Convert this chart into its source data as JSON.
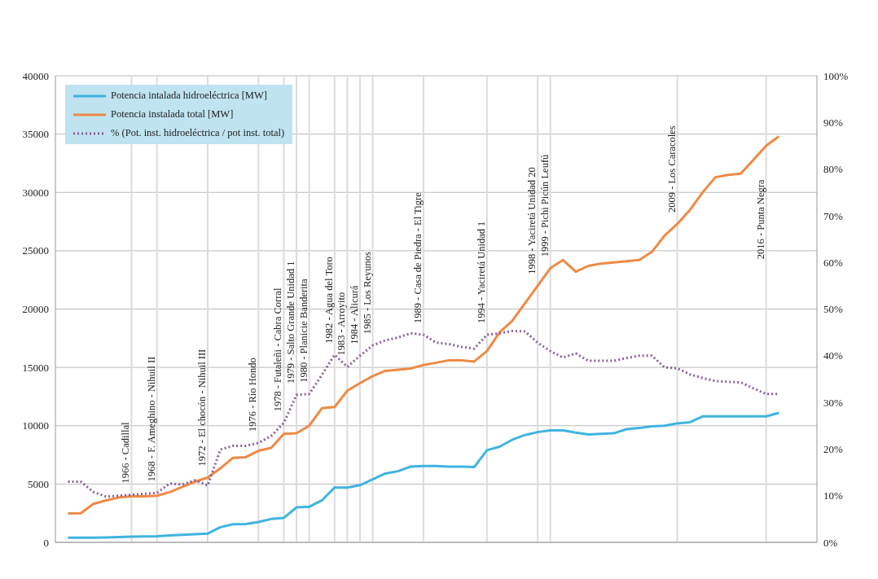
{
  "chart_data": {
    "type": "line",
    "x": [
      1961,
      1962,
      1963,
      1964,
      1965,
      1966,
      1967,
      1968,
      1969,
      1970,
      1971,
      1972,
      1973,
      1974,
      1975,
      1976,
      1977,
      1978,
      1979,
      1980,
      1981,
      1982,
      1983,
      1984,
      1985,
      1986,
      1987,
      1988,
      1989,
      1990,
      1991,
      1992,
      1993,
      1994,
      1995,
      1996,
      1997,
      1998,
      1999,
      2000,
      2001,
      2002,
      2003,
      2004,
      2005,
      2006,
      2007,
      2008,
      2009,
      2010,
      2011,
      2012,
      2013,
      2014,
      2015,
      2016,
      2017
    ],
    "series": [
      {
        "name": "Potencia intalada hidroeléctrica [MW]",
        "color": "#3fb4e0",
        "line_style": "solid",
        "values": [
          400,
          400,
          400,
          420,
          450,
          480,
          500,
          520,
          600,
          650,
          700,
          750,
          1300,
          1550,
          1570,
          1750,
          2000,
          2100,
          3000,
          3050,
          3600,
          4700,
          4700,
          4900,
          5400,
          5900,
          6100,
          6500,
          6550,
          6550,
          6500,
          6500,
          6450,
          7900,
          8200,
          8800,
          9200,
          9450,
          9600,
          9600,
          9400,
          9250,
          9300,
          9350,
          9700,
          9800,
          9950,
          10000,
          10200,
          10300,
          10800,
          10800,
          10800,
          10800,
          10800,
          10800,
          11100
        ]
      },
      {
        "name": "Potencia instalada total [MW]",
        "color": "#ee8a45",
        "line_style": "solid",
        "values": [
          2470,
          2500,
          3300,
          3600,
          3850,
          3950,
          3950,
          4000,
          4300,
          4750,
          5200,
          5550,
          6350,
          7250,
          7300,
          7850,
          8100,
          9300,
          9350,
          10000,
          11500,
          11600,
          13000,
          13650,
          14250,
          14700,
          14800,
          14900,
          15200,
          15400,
          15600,
          15600,
          15500,
          16400,
          18000,
          19000,
          20500,
          22000,
          23500,
          24200,
          23200,
          23700,
          23900,
          24000,
          24100,
          24200,
          24900,
          26300,
          27300,
          28500,
          30000,
          31300,
          31500,
          31600,
          32800,
          34000,
          34800
        ]
      },
      {
        "name": "% (Pot. inst. hidroeléctrica / pot inst. total)",
        "color": "#8a5f96",
        "line_style": "dotted",
        "axis": "y2",
        "values": [
          13,
          13,
          10.8,
          9.8,
          10,
          10.2,
          10.4,
          10.6,
          12.6,
          12.4,
          13.3,
          12.2,
          19.9,
          20.7,
          20.7,
          21.3,
          22.8,
          25.6,
          31.6,
          31.8,
          35.9,
          40.2,
          37.6,
          40,
          42.2,
          43.3,
          43.9,
          44.8,
          44.5,
          42.8,
          42.5,
          41.9,
          41.5,
          44.5,
          44.8,
          45.3,
          45.2,
          42.8,
          41,
          39.6,
          40.5,
          38.9,
          38.9,
          38.9,
          39.5,
          40,
          40,
          37.5,
          37.3,
          36,
          35.2,
          34.6,
          34.4,
          34.3,
          33,
          31.8,
          31.8
        ]
      }
    ],
    "xlim": [
      1960,
      2020
    ],
    "ylim": [
      0,
      40000
    ],
    "yticks": [
      0,
      5000,
      10000,
      15000,
      20000,
      25000,
      30000,
      35000,
      40000
    ],
    "y2lim": [
      0,
      100
    ],
    "y2ticks": [
      {
        "value": 0,
        "label": "0%"
      },
      {
        "value": 10,
        "label": "10%"
      },
      {
        "value": 20,
        "label": "20%"
      },
      {
        "value": 30,
        "label": "30%"
      },
      {
        "value": 40,
        "label": "40%"
      },
      {
        "value": 50,
        "label": "50%"
      },
      {
        "value": 60,
        "label": "60%"
      },
      {
        "value": 70,
        "label": "70%"
      },
      {
        "value": 80,
        "label": "80%"
      },
      {
        "value": 90,
        "label": "90%"
      },
      {
        "value": 100,
        "label": "100%"
      }
    ],
    "tick_labels": "y",
    "grid": "y",
    "legend": "top left",
    "marker": "none",
    "ref_lines": [
      {
        "axis": "x",
        "value": 1966,
        "label": "1966 - Cadillal",
        "color": "#dcdcdc"
      },
      {
        "axis": "x",
        "value": 1968,
        "label": "1968 - F. Ameghino - Nihuil II",
        "color": "#dcdcdc"
      },
      {
        "axis": "x",
        "value": 1972,
        "label": "1972 - El chocón - Nihuil III",
        "color": "#dcdcdc"
      },
      {
        "axis": "x",
        "value": 1976,
        "label": "1976 - Río Hondo",
        "color": "#dcdcdc"
      },
      {
        "axis": "x",
        "value": 1978,
        "label": "1978 - Futaleñi - Cabra Corral",
        "color": "#dcdcdc"
      },
      {
        "axis": "x",
        "value": 1979,
        "label": "1979 - Salto Grande Unidad 1",
        "color": "#dcdcdc"
      },
      {
        "axis": "x",
        "value": 1980,
        "label": "1980 - Planicie Banderita",
        "color": "#dcdcdc"
      },
      {
        "axis": "x",
        "value": 1982,
        "label": "1982 - Agua del Toro",
        "color": "#dcdcdc"
      },
      {
        "axis": "x",
        "value": 1983,
        "label": "1983 - Arroyito",
        "color": "#dcdcdc"
      },
      {
        "axis": "x",
        "value": 1984,
        "label": "1984 - Alicurá",
        "color": "#dcdcdc"
      },
      {
        "axis": "x",
        "value": 1985,
        "label": "1985 - Los Reyunos",
        "color": "#dcdcdc"
      },
      {
        "axis": "x",
        "value": 1989,
        "label": "1989 - Casa de Piedra - El Tigre",
        "color": "#dcdcdc"
      },
      {
        "axis": "x",
        "value": 1994,
        "label": "1994 - Yaciretá Unidad 1",
        "color": "#dcdcdc"
      },
      {
        "axis": "x",
        "value": 1998,
        "label": "1998 - Yaciretá Unidad 20",
        "color": "#dcdcdc"
      },
      {
        "axis": "x",
        "value": 1999,
        "label": "1999 - Pichi Picún Leufú",
        "color": "#dcdcdc"
      },
      {
        "axis": "x",
        "value": 2009,
        "label": "2009 - Los Caracoles",
        "color": "#dcdcdc"
      },
      {
        "axis": "x",
        "value": 2016,
        "label": "2016 - Punta Negra",
        "color": "#dcdcdc"
      }
    ]
  }
}
